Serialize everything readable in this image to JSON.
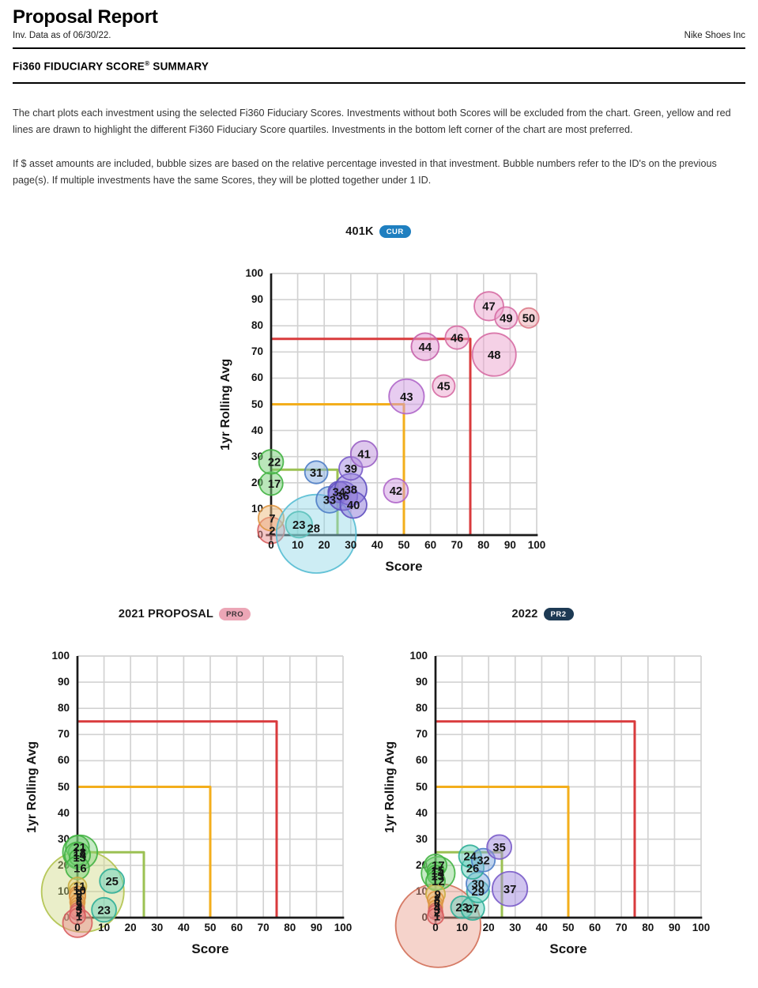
{
  "header": {
    "title": "Proposal Report",
    "subtitle_left": "Inv. Data as of 06/30/22.",
    "subtitle_right": "Nike Shoes Inc",
    "section_title": "Fi360 FIDUCIARY SCORE",
    "section_title_reg": "®",
    "section_title_suffix": " SUMMARY"
  },
  "description": {
    "paragraph1": "The chart plots each investment using the selected Fi360 Fiduciary Scores. Investments without both Scores will be excluded from the chart. Green, yellow and red lines are drawn to highlight the different Fi360 Fiduciary Score quartiles. Investments in the bottom left corner of the chart are most preferred.",
    "paragraph2": "If $ asset amounts are included, bubble sizes are based on the relative percentage invested in that investment. Bubble numbers refer to the ID's on the previous page(s). If multiple investments have the same Scores, they will be plotted together under 1 ID."
  },
  "palette": {
    "green": [
      "#76d076",
      "#43b243"
    ],
    "teal": [
      "#68d2bd",
      "#2fae97"
    ],
    "cyan": [
      "#90d8e6",
      "#55bcd3"
    ],
    "blue": [
      "#84abdf",
      "#4f7ec6"
    ],
    "indigo": [
      "#8b78d8",
      "#5f4fc0"
    ],
    "purple": [
      "#a18ae0",
      "#7a5cc9"
    ],
    "violet": [
      "#bd8fdc",
      "#9a60c4"
    ],
    "orchid": [
      "#d09ae2",
      "#af66c9"
    ],
    "magenta": [
      "#e293d2",
      "#c45fa9"
    ],
    "pink": [
      "#eba3cd",
      "#d66ba3"
    ],
    "salmonpink": [
      "#efa9b2",
      "#dc7a88"
    ],
    "salmon": [
      "#e89d8c",
      "#d26f58"
    ],
    "orange": [
      "#eebb7e",
      "#dd9542"
    ],
    "yellow": [
      "#e7d07c",
      "#c9ad41"
    ],
    "yellowgreen": [
      "#ccd67f",
      "#b0c24d"
    ],
    "red": [
      "#ea9090",
      "#d85f5f"
    ]
  },
  "chart_data": [
    {
      "type": "bubble",
      "title": "401K",
      "badge": {
        "label": "CUR",
        "bg": "#1f7fc0",
        "fg": "#ffffff"
      },
      "xlabel": "Score",
      "ylabel": "1yr Rolling Avg",
      "xlim": [
        0,
        100
      ],
      "ylim": [
        0,
        100
      ],
      "grid": true,
      "ticks": [
        0,
        10,
        20,
        30,
        40,
        50,
        60,
        70,
        80,
        90,
        100
      ],
      "quartile_lines": [
        {
          "name": "quartile-line-green",
          "level": 25,
          "color": "#9cc153"
        },
        {
          "name": "quartile-line-yellow",
          "level": 50,
          "color": "#f3ae1c"
        },
        {
          "name": "quartile-line-red",
          "level": 75,
          "color": "#d93b3d"
        }
      ],
      "bubbles": [
        {
          "id": "2",
          "x": 0,
          "y": 1.8,
          "r": 5,
          "c": "red",
          "lx": 0.4
        },
        {
          "id": "7",
          "x": 0,
          "y": 6.5,
          "r": 4.8,
          "c": "orange",
          "lx": 0.4
        },
        {
          "id": "17",
          "x": 0,
          "y": 19.7,
          "r": 4.4,
          "c": "green",
          "lx": 1.2
        },
        {
          "id": "22",
          "x": 0,
          "y": 28,
          "r": 4.6,
          "c": "green",
          "lx": 1.2
        },
        {
          "id": "23",
          "x": 10.5,
          "y": 4,
          "r": 5,
          "c": "teal"
        },
        {
          "id": "28",
          "x": 17,
          "y": 0.5,
          "r": 15,
          "c": "cyan",
          "lx": 16,
          "ly": 2.6,
          "o": 0.45
        },
        {
          "id": "31",
          "x": 17,
          "y": 24,
          "r": 4.3,
          "c": "blue"
        },
        {
          "id": "33",
          "x": 22,
          "y": 13.5,
          "r": 5,
          "c": "blue"
        },
        {
          "id": "34",
          "x": 25.5,
          "y": 16.5,
          "r": 4,
          "c": "indigo"
        },
        {
          "id": "36",
          "x": 27,
          "y": 15,
          "r": 5.5,
          "c": "indigo"
        },
        {
          "id": "38",
          "x": 30,
          "y": 17.5,
          "r": 6,
          "c": "indigo"
        },
        {
          "id": "39",
          "x": 30,
          "y": 25.5,
          "r": 4.4,
          "c": "purple"
        },
        {
          "id": "40",
          "x": 31,
          "y": 11.5,
          "r": 5,
          "c": "indigo"
        },
        {
          "id": "41",
          "x": 35,
          "y": 31,
          "r": 5,
          "c": "violet"
        },
        {
          "id": "42",
          "x": 47,
          "y": 17,
          "r": 4.6,
          "c": "orchid"
        },
        {
          "id": "43",
          "x": 51,
          "y": 53,
          "r": 6.6,
          "c": "orchid"
        },
        {
          "id": "44",
          "x": 58,
          "y": 72,
          "r": 5.2,
          "c": "magenta"
        },
        {
          "id": "45",
          "x": 65,
          "y": 57,
          "r": 4.2,
          "c": "pink"
        },
        {
          "id": "46",
          "x": 70,
          "y": 75.5,
          "r": 4.4,
          "c": "pink"
        },
        {
          "id": "47",
          "x": 82,
          "y": 87.5,
          "r": 5.5,
          "c": "pink"
        },
        {
          "id": "48",
          "x": 84,
          "y": 69,
          "r": 8.2,
          "c": "pink"
        },
        {
          "id": "49",
          "x": 88.5,
          "y": 83,
          "r": 4.2,
          "c": "pink"
        },
        {
          "id": "50",
          "x": 97,
          "y": 83,
          "r": 3.8,
          "c": "salmonpink"
        }
      ]
    },
    {
      "type": "bubble",
      "title": "2021 PROPOSAL",
      "badge": {
        "label": "PRO",
        "bg": "#eca6b6",
        "fg": "#3d3438"
      },
      "xlabel": "Score",
      "ylabel": "1yr Rolling Avg",
      "xlim": [
        0,
        100
      ],
      "ylim": [
        0,
        100
      ],
      "grid": true,
      "ticks": [
        0,
        10,
        20,
        30,
        40,
        50,
        60,
        70,
        80,
        90,
        100
      ],
      "quartile_lines": [
        {
          "name": "quartile-line-green",
          "level": 25,
          "color": "#9cc153"
        },
        {
          "name": "quartile-line-yellow",
          "level": 50,
          "color": "#f3ae1c"
        },
        {
          "name": "quartile-line-red",
          "level": 75,
          "color": "#d93b3d"
        }
      ],
      "bubbles": [
        {
          "id": "",
          "x": 2,
          "y": 10,
          "r": 15.5,
          "c": "yellowgreen",
          "o": 0.42
        },
        {
          "id": "",
          "x": 1,
          "y": 25,
          "r": 6.5,
          "c": "green",
          "o": 0.42
        },
        {
          "id": "",
          "x": 0,
          "y": -2,
          "r": 5.5,
          "c": "red"
        },
        {
          "id": "21",
          "x": 0,
          "y": 27,
          "r": 4.4,
          "c": "green",
          "lx": 0.8
        },
        {
          "id": "18",
          "x": 0,
          "y": 25,
          "r": 3.4,
          "c": "green",
          "lx": 0.8
        },
        {
          "id": "14",
          "x": 0,
          "y": 24,
          "r": 4.8,
          "c": "green",
          "lx": 0.8
        },
        {
          "id": "13",
          "x": 0,
          "y": 23,
          "r": 3,
          "c": "green",
          "lx": 0.8
        },
        {
          "id": "16",
          "x": 0,
          "y": 19,
          "r": 4.4,
          "c": "green",
          "lx": 1
        },
        {
          "id": "11",
          "x": 0,
          "y": 12,
          "r": 3.4,
          "c": "yellow",
          "lx": 0.8
        },
        {
          "id": "10",
          "x": 0,
          "y": 10.5,
          "r": 3,
          "c": "yellow",
          "lx": 0.8
        },
        {
          "id": "9",
          "x": 0,
          "y": 9,
          "r": 3,
          "c": "orange",
          "lx": 0.6
        },
        {
          "id": "8",
          "x": 0,
          "y": 8,
          "r": 3,
          "c": "orange",
          "lx": 0.6
        },
        {
          "id": "6",
          "x": 0,
          "y": 6,
          "r": 2.8,
          "c": "orange",
          "lx": 0.6
        },
        {
          "id": "5",
          "x": 0,
          "y": 5,
          "r": 2.6,
          "c": "orange",
          "lx": 0.6
        },
        {
          "id": "4",
          "x": 0,
          "y": 4,
          "r": 2.6,
          "c": "orange",
          "lx": 0.6
        },
        {
          "id": "3",
          "x": 0,
          "y": 3,
          "r": 2.6,
          "c": "salmon",
          "lx": 0.6
        },
        {
          "id": "2",
          "x": 0,
          "y": 2,
          "r": 2.8,
          "c": "red",
          "lx": 0.6
        },
        {
          "id": "1",
          "x": 0,
          "y": 0.5,
          "r": 3,
          "c": "red",
          "lx": 0.6
        },
        {
          "id": "25",
          "x": 13,
          "y": 14,
          "r": 4.6,
          "c": "teal"
        },
        {
          "id": "23",
          "x": 10,
          "y": 3,
          "r": 4.6,
          "c": "teal"
        }
      ]
    },
    {
      "type": "bubble",
      "title": "2022",
      "badge": {
        "label": "PR2",
        "bg": "#1d3a54",
        "fg": "#ffffff"
      },
      "xlabel": "Score",
      "ylabel": "1yr Rolling Avg",
      "xlim": [
        0,
        100
      ],
      "ylim": [
        0,
        100
      ],
      "grid": true,
      "ticks": [
        0,
        10,
        20,
        30,
        40,
        50,
        60,
        70,
        80,
        90,
        100
      ],
      "quartile_lines": [
        {
          "name": "quartile-line-green",
          "level": 25,
          "color": "#9cc153"
        },
        {
          "name": "quartile-line-yellow",
          "level": 50,
          "color": "#f3ae1c"
        },
        {
          "name": "quartile-line-red",
          "level": 75,
          "color": "#d93b3d"
        }
      ],
      "bubbles": [
        {
          "id": "",
          "x": 1,
          "y": -3,
          "r": 16,
          "c": "salmon",
          "o": 0.45
        },
        {
          "id": "",
          "x": 1,
          "y": 17,
          "r": 6.3,
          "c": "green",
          "o": 0.42
        },
        {
          "id": "17",
          "x": 0,
          "y": 20,
          "r": 4.2,
          "c": "green",
          "lx": 1
        },
        {
          "id": "15",
          "x": 0,
          "y": 18,
          "r": 3.2,
          "c": "green",
          "lx": 0.8
        },
        {
          "id": "14",
          "x": 0,
          "y": 17,
          "r": 3,
          "c": "green",
          "lx": 0.8
        },
        {
          "id": "13",
          "x": 0,
          "y": 16,
          "r": 3,
          "c": "green",
          "lx": 0.8
        },
        {
          "id": "12",
          "x": 0,
          "y": 14,
          "r": 3.6,
          "c": "green",
          "lx": 1
        },
        {
          "id": "9",
          "x": 0,
          "y": 9,
          "r": 3.6,
          "c": "yellow",
          "lx": 0.8
        },
        {
          "id": "8",
          "x": 0,
          "y": 7,
          "r": 3,
          "c": "orange",
          "lx": 0.6
        },
        {
          "id": "6",
          "x": 0,
          "y": 5.5,
          "r": 2.6,
          "c": "orange",
          "lx": 0.6
        },
        {
          "id": "4",
          "x": 0,
          "y": 4,
          "r": 2.6,
          "c": "orange",
          "lx": 0.6
        },
        {
          "id": "3",
          "x": 0,
          "y": 3,
          "r": 2.5,
          "c": "salmon",
          "lx": 0.6
        },
        {
          "id": "2",
          "x": 0,
          "y": 2,
          "r": 2.7,
          "c": "red",
          "lx": 0.6
        },
        {
          "id": "1",
          "x": 0,
          "y": 0.5,
          "r": 3,
          "c": "red",
          "lx": 0.6
        },
        {
          "id": "23",
          "x": 10,
          "y": 4,
          "r": 4.2,
          "c": "teal"
        },
        {
          "id": "27",
          "x": 14,
          "y": 3.5,
          "r": 4.4,
          "c": "teal"
        },
        {
          "id": "29",
          "x": 16,
          "y": 10,
          "r": 4.2,
          "c": "teal"
        },
        {
          "id": "30",
          "x": 16,
          "y": 13,
          "r": 4.4,
          "c": "blue"
        },
        {
          "id": "26",
          "x": 14,
          "y": 19,
          "r": 4.2,
          "c": "teal"
        },
        {
          "id": "24",
          "x": 13,
          "y": 23.5,
          "r": 4.2,
          "c": "teal"
        },
        {
          "id": "32",
          "x": 18,
          "y": 22,
          "r": 4.4,
          "c": "blue"
        },
        {
          "id": "35",
          "x": 24,
          "y": 27,
          "r": 4.6,
          "c": "purple"
        },
        {
          "id": "37",
          "x": 28,
          "y": 11,
          "r": 6.6,
          "c": "purple"
        }
      ]
    }
  ]
}
